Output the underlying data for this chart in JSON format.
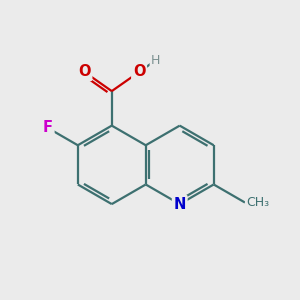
{
  "bg_color": "#ebebeb",
  "bond_color": "#3d7070",
  "bond_width": 1.6,
  "atom_colors": {
    "N": "#0000cc",
    "O": "#cc0000",
    "F": "#cc00cc",
    "H": "#7a9090",
    "C": "#3d7070"
  },
  "font_size": 10,
  "figsize": [
    3.0,
    3.0
  ],
  "dpi": 100,
  "bl": 1.32
}
